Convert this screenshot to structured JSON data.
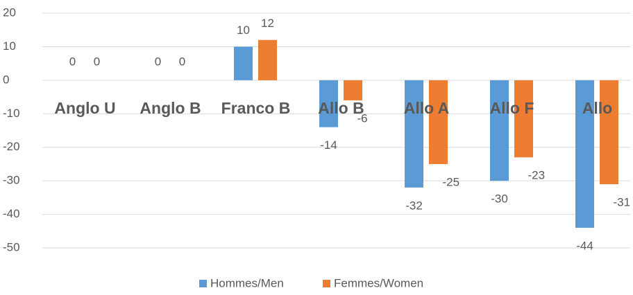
{
  "chart_data": {
    "type": "bar",
    "categories": [
      "Anglo U",
      "Anglo B",
      "Franco B",
      "Allo B",
      "Allo A",
      "Allo F",
      "Allo"
    ],
    "series": [
      {
        "name": "Hommes/Men",
        "color": "#5b9bd5",
        "values": [
          0,
          0,
          10,
          -14,
          -32,
          -30,
          -44
        ]
      },
      {
        "name": "Femmes/Women",
        "color": "#ed7d31",
        "values": [
          0,
          0,
          12,
          -6,
          -25,
          -23,
          -31
        ]
      }
    ],
    "ylim": [
      -50,
      20
    ],
    "yticks": [
      -50,
      -40,
      -30,
      -20,
      -10,
      0,
      10,
      20
    ],
    "grid": true,
    "legend": "bottom"
  }
}
